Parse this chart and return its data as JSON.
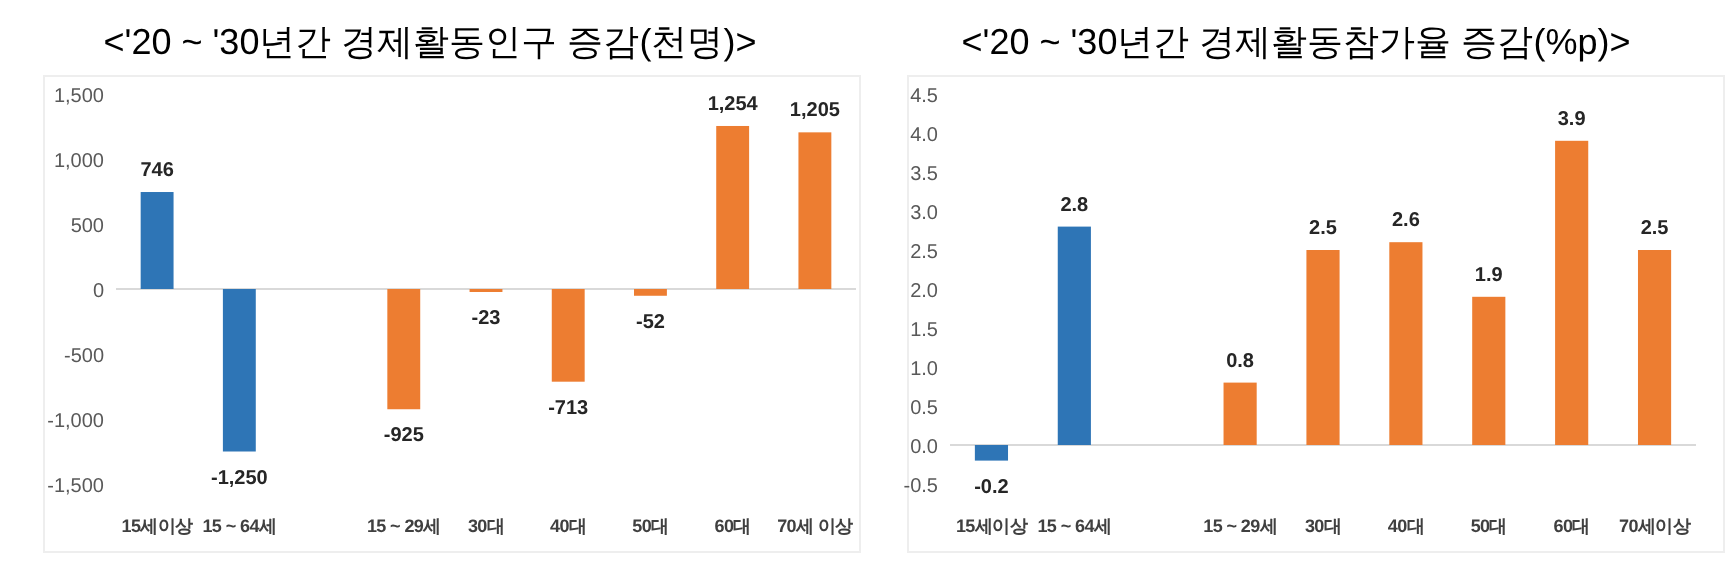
{
  "chart_data": [
    {
      "type": "bar",
      "title": "<'20 ~ '30년간 경제활동인구 증감(천명)>",
      "categories": [
        "15세이상",
        "15 ~ 64세",
        null,
        "15 ~ 29세",
        "30대",
        "40대",
        "50대",
        "60대",
        "70세 이상"
      ],
      "values": [
        746,
        -1250,
        null,
        -925,
        -23,
        -713,
        -52,
        1254,
        1205
      ],
      "colors": [
        "#2e75b6",
        "#2e75b6",
        null,
        "#ed7d31",
        "#ed7d31",
        "#ed7d31",
        "#ed7d31",
        "#ed7d31",
        "#ed7d31"
      ],
      "value_labels": [
        "746",
        "-1,250",
        null,
        "-925",
        "-23",
        "-713",
        "-52",
        "1,254",
        "1,205"
      ],
      "ylim": [
        -1500,
        1500
      ],
      "yticks": [
        {
          "value": -1500,
          "label": "-1,500"
        },
        {
          "value": -1000,
          "label": "-1,000"
        },
        -500,
        0,
        500,
        {
          "value": 1000,
          "label": "1,000"
        },
        {
          "value": 1500,
          "label": "1,500"
        }
      ]
    },
    {
      "type": "bar",
      "title": "<'20 ~ '30년간 경제활동참가율 증감(%p)>",
      "categories": [
        "15세이상",
        "15 ~ 64세",
        null,
        "15 ~ 29세",
        "30대",
        "40대",
        "50대",
        "60대",
        "70세이상"
      ],
      "values": [
        -0.2,
        2.8,
        null,
        0.8,
        2.5,
        2.6,
        1.9,
        3.9,
        2.5
      ],
      "colors": [
        "#2e75b6",
        "#2e75b6",
        null,
        "#ed7d31",
        "#ed7d31",
        "#ed7d31",
        "#ed7d31",
        "#ed7d31",
        "#ed7d31"
      ],
      "data_labels": true,
      "ylim": [
        -0.5,
        4.5
      ],
      "yticks": [
        -0.5,
        {
          "value": 0,
          "label": "0.0"
        },
        0.5,
        {
          "value": 1,
          "label": "1.0"
        },
        1.5,
        {
          "value": 2,
          "label": "2.0"
        },
        2.5,
        {
          "value": 3,
          "label": "3.0"
        },
        3.5,
        {
          "value": 4,
          "label": "4.0"
        },
        4.5
      ]
    }
  ]
}
